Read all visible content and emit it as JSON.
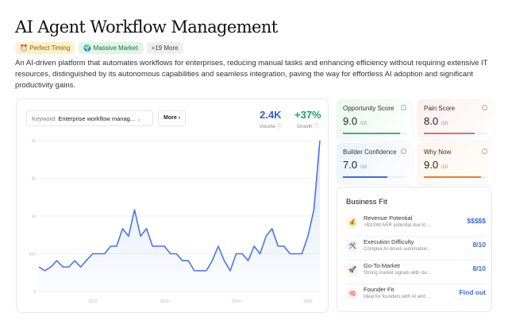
{
  "title": "AI Agent Workflow Management",
  "tags": [
    {
      "icon": "alarm-clock-icon",
      "glyph": "⏰",
      "label": "Perfect Timing"
    },
    {
      "icon": "globe-icon",
      "glyph": "🌍",
      "label": "Massive Market"
    },
    {
      "label": "+19 More"
    }
  ],
  "description": "An AI-driven platform that automates workflows for enterprises, reducing manual tasks and enhancing efficiency without requiring extensive IT resources, distinguished by its autonomous capabilities and seamless integration, paving the way for effortless AI adoption and significant productivity gains.",
  "keyword": {
    "label": "Keyword:",
    "value": "Enterprise workflow manag..."
  },
  "more_label": "More",
  "volume": {
    "value": "2.4K",
    "label": "Volume",
    "color": "#2f5fe0"
  },
  "growth": {
    "value": "+37%",
    "label": "Growth",
    "color": "#1aa35a"
  },
  "chart_data": {
    "type": "area",
    "y_tick_labels": [
      "0",
      "600",
      "1k",
      "2k",
      "2k"
    ],
    "ylim": [
      0,
      2400
    ],
    "x_tick_labels": [
      "2022",
      "2023",
      "2024",
      "2025"
    ],
    "x_start": "2021-04",
    "x_end": "2025-03",
    "interval": "monthly",
    "grid": true,
    "color": "#4a74e8",
    "values": [
      390,
      330,
      390,
      490,
      390,
      390,
      490,
      390,
      500,
      600,
      600,
      600,
      720,
      720,
      1000,
      880,
      1300,
      880,
      1000,
      720,
      720,
      720,
      600,
      600,
      490,
      490,
      330,
      330,
      330,
      490,
      720,
      490,
      330,
      600,
      600,
      490,
      720,
      600,
      880,
      1000,
      720,
      720,
      600,
      600,
      600,
      880,
      1300,
      2400
    ]
  },
  "scores": [
    {
      "name": "Opportunity Score",
      "value": "9.0",
      "max": "/10",
      "fraction": 0.9,
      "color": "#3bb37a",
      "bg": "#eaf8f0"
    },
    {
      "name": "Pain Score",
      "value": "8.0",
      "max": "/10",
      "fraction": 0.8,
      "color": "#e86a6a",
      "bg": "#fdeeee"
    },
    {
      "name": "Builder Confidence",
      "value": "7.0",
      "max": "/10",
      "fraction": 0.7,
      "color": "#3b6be8",
      "bg": "#ecf2fd"
    },
    {
      "name": "Why Now",
      "value": "9.0",
      "max": "/10",
      "fraction": 0.9,
      "color": "#f07a2a",
      "bg": "#fef4ea"
    }
  ],
  "business_fit": {
    "title": "Business Fit",
    "rows": [
      {
        "icon": "money-bag-icon",
        "glyph": "💰",
        "title": "Revenue Potential",
        "desc": ">$100M ARR potential due to ...",
        "value": "$$$$$"
      },
      {
        "icon": "tools-icon",
        "glyph": "🛠️",
        "title": "Execution Difficulty",
        "desc": "Complex AI-driven automation...",
        "value": "8/10"
      },
      {
        "icon": "rocket-icon",
        "glyph": "🚀",
        "title": "Go-To-Market",
        "desc": "Strong market signals with cle...",
        "value": "8/10"
      },
      {
        "icon": "brain-icon",
        "glyph": "🧠",
        "title": "Founder Fit",
        "desc": "Ideal for founders with AI and ...",
        "value": "Find out"
      }
    ]
  }
}
